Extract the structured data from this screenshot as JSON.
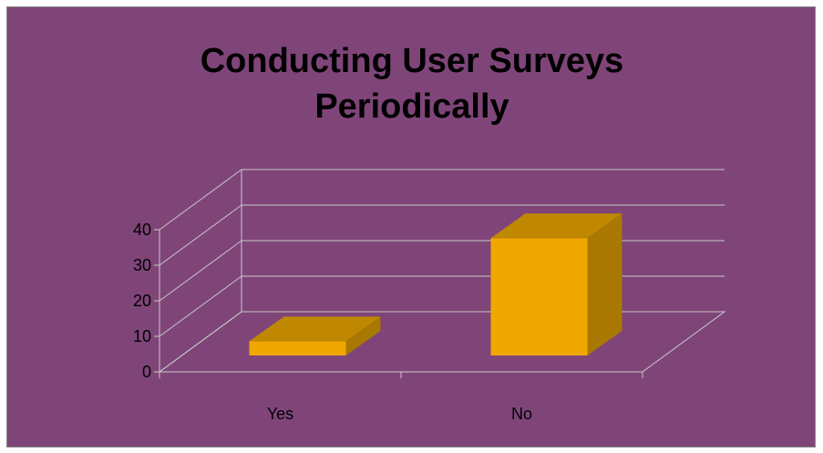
{
  "chart_data": {
    "type": "bar",
    "title_lines": [
      "Conducting User Surveys",
      "Periodically"
    ],
    "categories": [
      "Yes",
      "No"
    ],
    "values": [
      4,
      33
    ],
    "ylim": [
      0,
      40
    ],
    "yticks": [
      "0",
      "10",
      "20",
      "30",
      "40"
    ],
    "xlabel": "",
    "ylabel": "",
    "grid": true,
    "style": "3d-column",
    "colors": {
      "background": "#7f4579",
      "bar_front": "#f0a800",
      "bar_top": "#c08800",
      "bar_side": "#a87800",
      "gridline": "#c8c8c8"
    }
  }
}
